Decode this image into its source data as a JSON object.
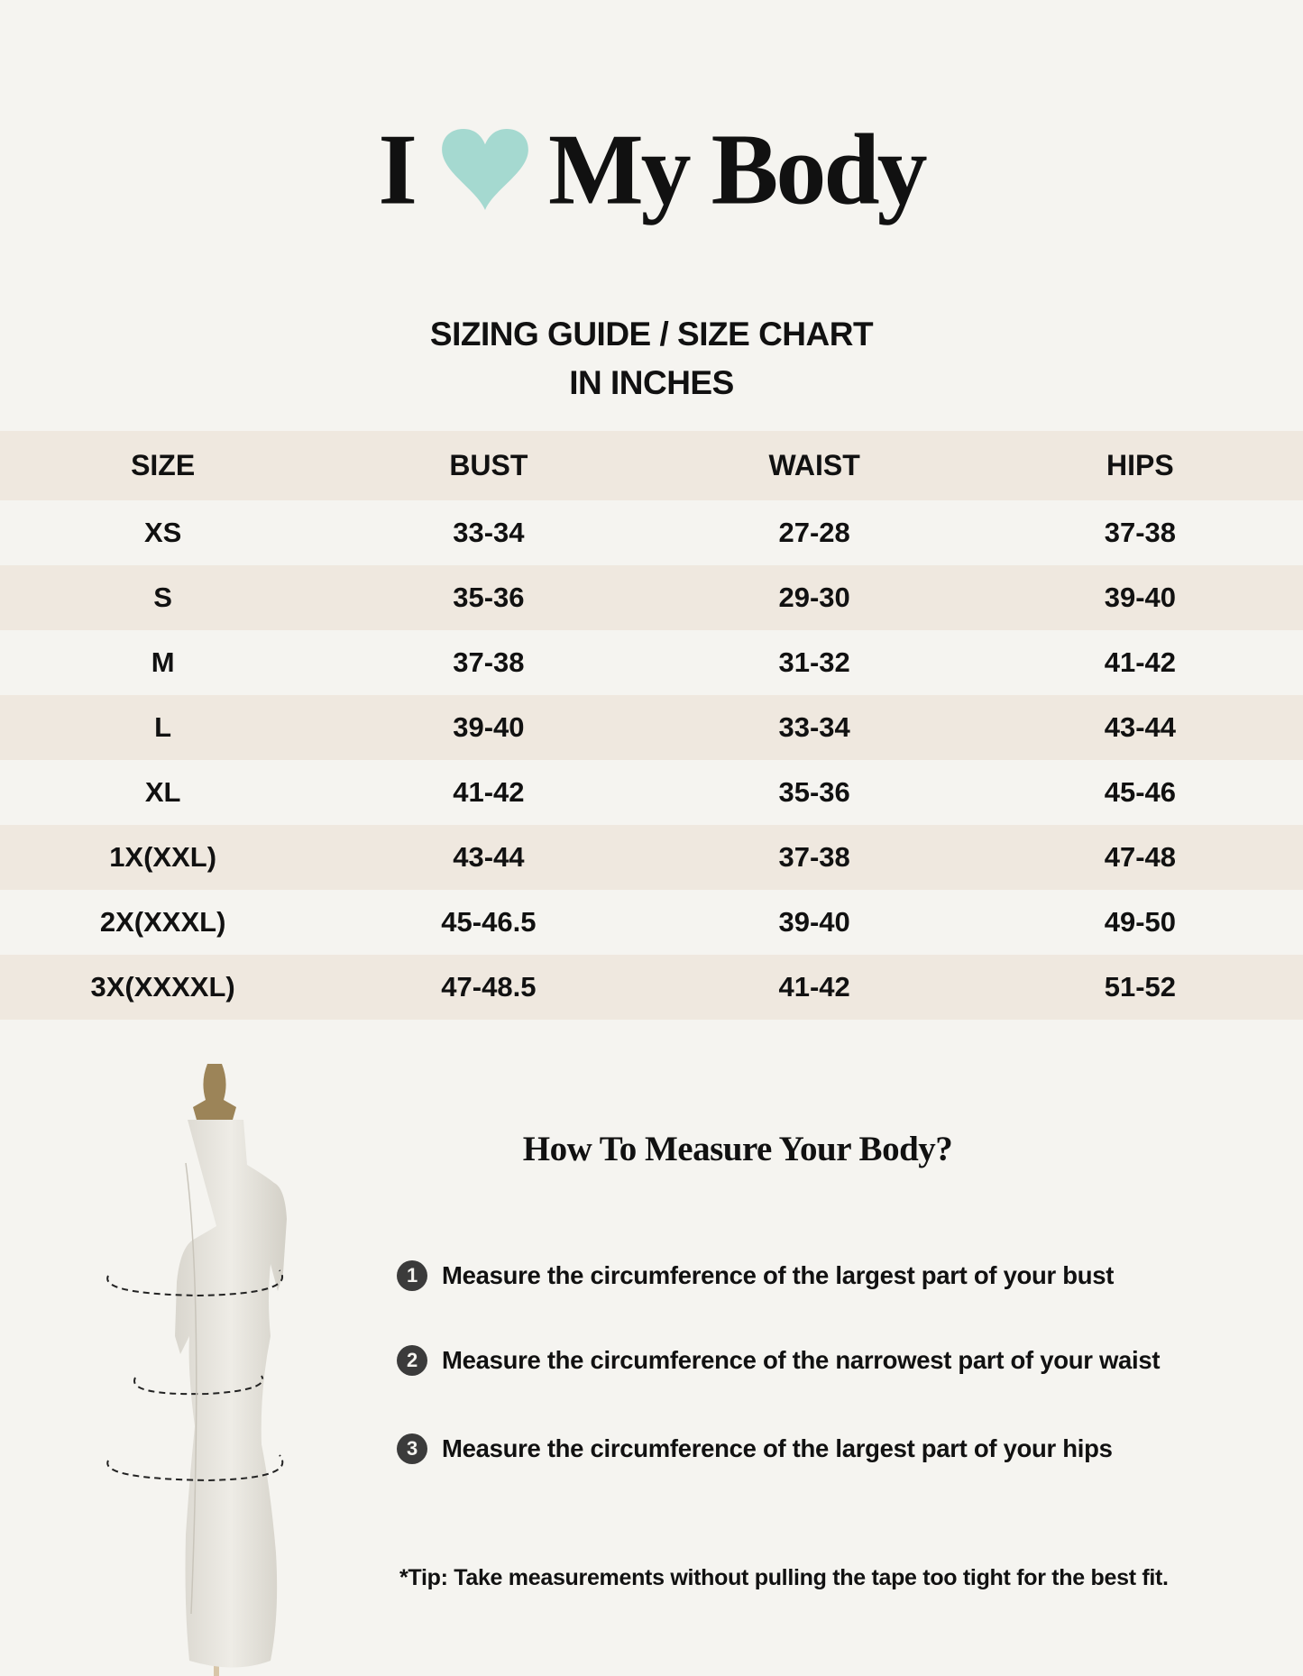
{
  "brand": {
    "title_left": "I",
    "title_right": "My Body",
    "heart_color": "#a5d9d0",
    "heart_icon": "heart-icon"
  },
  "heading": {
    "line1": "SIZING GUIDE / SIZE CHART",
    "line2": "IN INCHES"
  },
  "table": {
    "columns": [
      "SIZE",
      "BUST",
      "WAIST",
      "HIPS"
    ],
    "rows": [
      [
        "XS",
        "33-34",
        "27-28",
        "37-38"
      ],
      [
        "S",
        "35-36",
        "29-30",
        "39-40"
      ],
      [
        "M",
        "37-38",
        "31-32",
        "41-42"
      ],
      [
        "L",
        "39-40",
        "33-34",
        "43-44"
      ],
      [
        "XL",
        "41-42",
        "35-36",
        "45-46"
      ],
      [
        "1X(XXL)",
        "43-44",
        "37-38",
        "47-48"
      ],
      [
        "2X(XXXL)",
        "45-46.5",
        "39-40",
        "49-50"
      ],
      [
        "3X(XXXXL)",
        "47-48.5",
        "41-42",
        "51-52"
      ]
    ]
  },
  "measure": {
    "title": "How To Measure Your Body?",
    "steps": [
      {
        "num": "1",
        "text": "Measure the circumference of the largest part of your bust"
      },
      {
        "num": "2",
        "text": "Measure the circumference of the narrowest part of your waist"
      },
      {
        "num": "3",
        "text": "Measure the circumference of the largest part of your hips"
      }
    ],
    "tip": "*Tip: Take measurements without pulling the tape too tight for the best fit."
  },
  "colors": {
    "background": "#f5f4f0",
    "band": "#efe8df",
    "text": "#111111"
  }
}
